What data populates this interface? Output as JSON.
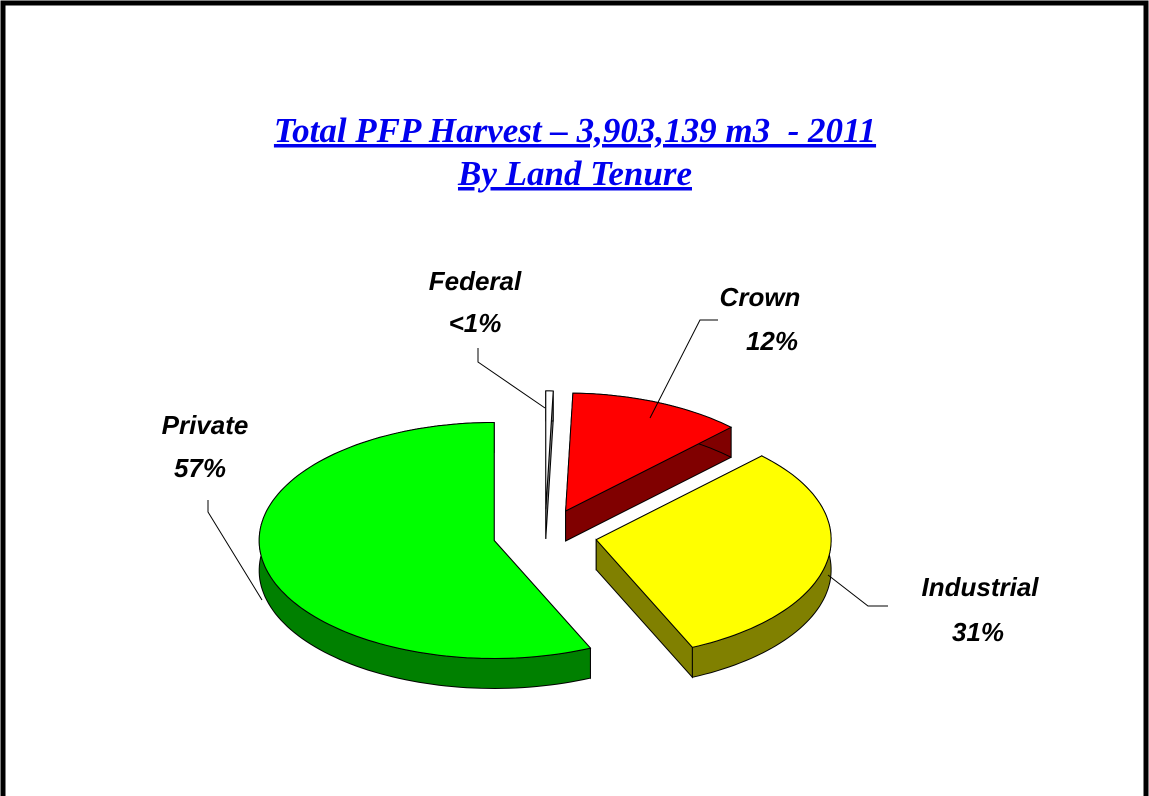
{
  "chart_data": {
    "type": "pie3d",
    "title": "Total PFP Harvest – 3,903,139 m3  - 2011",
    "subtitle": "By Land Tenure",
    "categories": [
      "Federal",
      "Crown",
      "Industrial",
      "Private"
    ],
    "values": [
      0.5,
      12,
      31,
      57
    ],
    "value_labels": [
      "<1%",
      "12%",
      "31%",
      "57%"
    ],
    "colors": [
      "#ffffff",
      "#ff0000",
      "#ffff00",
      "#00ff00"
    ]
  }
}
